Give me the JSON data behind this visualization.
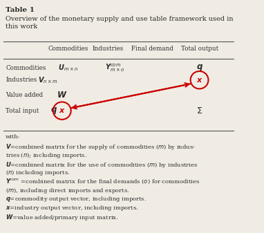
{
  "title_line1": "Table 1",
  "title_line2": "Overview of the monetary supply and use table framework used in this work",
  "col_headers": [
    "Commodities",
    "Industries",
    "Final demand",
    "Total output"
  ],
  "row_labels": [
    "Commodities",
    "Industries",
    "Value added",
    "Total input"
  ],
  "bg_color": "#f0ece4",
  "text_color": "#2a2a2a",
  "red_color": "#cc0000",
  "line_color": "#555555",
  "footer_lines": [
    "with:",
    "$\\boldsymbol{V}$=combined matrix for the supply of commodities ($m$) by indus-",
    "tries ($n$); including imports.",
    "$\\boldsymbol{U}$=combined matrix for the use of commodities ($m$) by industries",
    "($n$) including imports.",
    "$\\boldsymbol{Y}^{com}$ =combined matrix for the final demands ($o$) for commodities",
    "($m$), including direct imports and exports.",
    "$\\boldsymbol{q}$=commodity output vector, including imports.",
    "$\\boldsymbol{x}$=industry output vector, including imports.",
    "$\\boldsymbol{W}$=value added/primary input matrix."
  ]
}
